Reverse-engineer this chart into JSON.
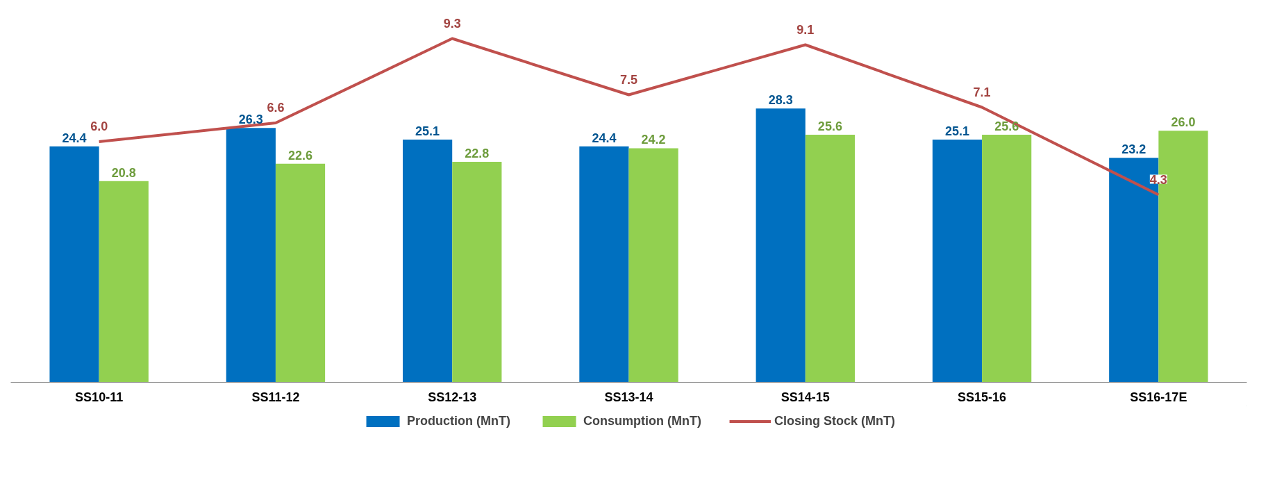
{
  "chart_data": {
    "type": "bar",
    "categories": [
      "SS10-11",
      "SS11-12",
      "SS12-13",
      "SS13-14",
      "SS14-15",
      "SS15-16",
      "SS16-17E"
    ],
    "series": [
      {
        "name": "Production (MnT)",
        "color": "#0070c0",
        "values": [
          24.4,
          26.3,
          25.1,
          24.4,
          28.3,
          25.1,
          23.2
        ],
        "value_labels": [
          "24.4",
          "26.3",
          "25.1",
          "24.4",
          "28.3",
          "25.1",
          "23.2"
        ]
      },
      {
        "name": "Consumption (MnT)",
        "color": "#92d050",
        "values": [
          20.8,
          22.6,
          22.8,
          24.2,
          25.6,
          25.6,
          26.0
        ],
        "value_labels": [
          "20.8",
          "22.6",
          "22.8",
          "24.2",
          "25.6",
          "25.6",
          "26.0"
        ]
      },
      {
        "name": "Closing Stock (MnT)",
        "type": "line",
        "axis": "y2",
        "color": "#c0504d",
        "values": [
          6.0,
          6.6,
          9.3,
          7.5,
          9.1,
          7.1,
          4.3
        ],
        "value_labels": [
          "6.0",
          "6.6",
          "9.3",
          "7.5",
          "9.1",
          "7.1",
          "4.3"
        ]
      }
    ],
    "tick_labels": "x",
    "legend": "bottom",
    "grid": false
  }
}
